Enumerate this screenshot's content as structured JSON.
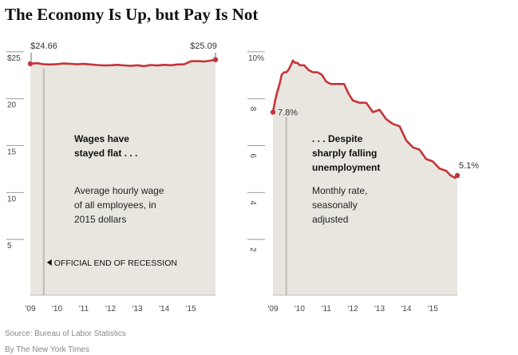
{
  "title": "The Economy Is Up, but Pay Is Not",
  "source": "Source: Bureau of Labor Statistics",
  "byline": "By The New York Times",
  "colors": {
    "line": "#c4343a",
    "area": "#e8e6df",
    "axis": "#777777",
    "recession": "#bdbbb1"
  },
  "chart_data": [
    {
      "type": "area",
      "title": "",
      "ylim": [
        0,
        25.5
      ],
      "xlim": [
        2009.0,
        2015.92
      ],
      "ytick_values": [
        5,
        10,
        15,
        20,
        25
      ],
      "ytick_labels": [
        "5",
        "10",
        "15",
        "20",
        "$25"
      ],
      "xticks": [
        {
          "value": 2009.0,
          "label": "'09"
        },
        {
          "value": 2010.0,
          "label": "'10"
        },
        {
          "value": 2011.0,
          "label": "'11"
        },
        {
          "value": 2012.0,
          "label": "'12"
        },
        {
          "value": 2013.0,
          "label": "'13"
        },
        {
          "value": 2014.0,
          "label": "'14"
        },
        {
          "value": 2015.0,
          "label": "'15"
        }
      ],
      "series": [
        {
          "x": [
            2009.0,
            2009.25,
            2009.5,
            2009.75,
            2010.0,
            2010.25,
            2010.5,
            2010.75,
            2011.0,
            2011.25,
            2011.5,
            2011.75,
            2012.0,
            2012.25,
            2012.5,
            2012.75,
            2013.0,
            2013.25,
            2013.5,
            2013.75,
            2014.0,
            2014.25,
            2014.5,
            2014.75,
            2015.0,
            2015.25,
            2015.5,
            2015.75,
            2015.92
          ],
          "values": [
            24.66,
            24.72,
            24.6,
            24.58,
            24.62,
            24.68,
            24.65,
            24.6,
            24.64,
            24.58,
            24.52,
            24.48,
            24.5,
            24.55,
            24.48,
            24.44,
            24.5,
            24.4,
            24.52,
            24.47,
            24.55,
            24.5,
            24.58,
            24.6,
            24.92,
            24.95,
            24.9,
            25.0,
            25.09
          ]
        }
      ],
      "recession_end": 2009.5,
      "point_labels": [
        {
          "x": 2009.0,
          "text": "$24.66"
        },
        {
          "x": 2015.92,
          "text": "$25.09"
        }
      ],
      "annotations": {
        "heading": [
          "Wages have",
          "stayed flat . . ."
        ],
        "description": [
          "Average hourly wage",
          "of all employees, in",
          "2015 dollars"
        ],
        "recession_label": "OFFICIAL END OF RECESSION"
      }
    },
    {
      "type": "area",
      "title": "",
      "ylim": [
        0,
        10.2
      ],
      "xlim": [
        2009.0,
        2015.92
      ],
      "ytick_values": [
        2,
        4,
        6,
        8,
        10
      ],
      "ytick_labels": [
        "2",
        "4",
        "6",
        "8",
        "10%"
      ],
      "xticks": [
        {
          "value": 2009.0,
          "label": "'09"
        },
        {
          "value": 2010.0,
          "label": "'10"
        },
        {
          "value": 2011.0,
          "label": "'11"
        },
        {
          "value": 2012.0,
          "label": "'12"
        },
        {
          "value": 2013.0,
          "label": "'13"
        },
        {
          "value": 2014.0,
          "label": "'14"
        },
        {
          "value": 2015.0,
          "label": "'15"
        }
      ],
      "series": [
        {
          "x": [
            2009.0,
            2009.08,
            2009.17,
            2009.25,
            2009.33,
            2009.42,
            2009.5,
            2009.58,
            2009.67,
            2009.75,
            2009.83,
            2009.92,
            2010.0,
            2010.17,
            2010.33,
            2010.5,
            2010.67,
            2010.83,
            2011.0,
            2011.17,
            2011.33,
            2011.5,
            2011.67,
            2011.83,
            2012.0,
            2012.25,
            2012.5,
            2012.75,
            2013.0,
            2013.25,
            2013.5,
            2013.75,
            2014.0,
            2014.25,
            2014.5,
            2014.75,
            2015.0,
            2015.25,
            2015.5,
            2015.67,
            2015.83,
            2015.92
          ],
          "values": [
            7.8,
            8.3,
            8.7,
            9.0,
            9.4,
            9.5,
            9.5,
            9.6,
            9.8,
            10.0,
            9.9,
            9.9,
            9.8,
            9.8,
            9.6,
            9.5,
            9.5,
            9.4,
            9.1,
            9.0,
            9.0,
            9.0,
            9.0,
            8.6,
            8.3,
            8.2,
            8.2,
            7.8,
            7.9,
            7.5,
            7.3,
            7.2,
            6.6,
            6.3,
            6.2,
            5.8,
            5.7,
            5.4,
            5.3,
            5.1,
            5.0,
            5.1
          ]
        }
      ],
      "recession_end": 2009.5,
      "point_labels": [
        {
          "x": 2009.0,
          "text": "7.8%"
        },
        {
          "x": 2015.92,
          "text": "5.1%"
        }
      ],
      "annotations": {
        "heading": [
          ". . . Despite",
          "sharply falling",
          "unemployment"
        ],
        "description": [
          "Monthly rate,",
          "seasonally",
          "adjusted"
        ]
      }
    }
  ]
}
